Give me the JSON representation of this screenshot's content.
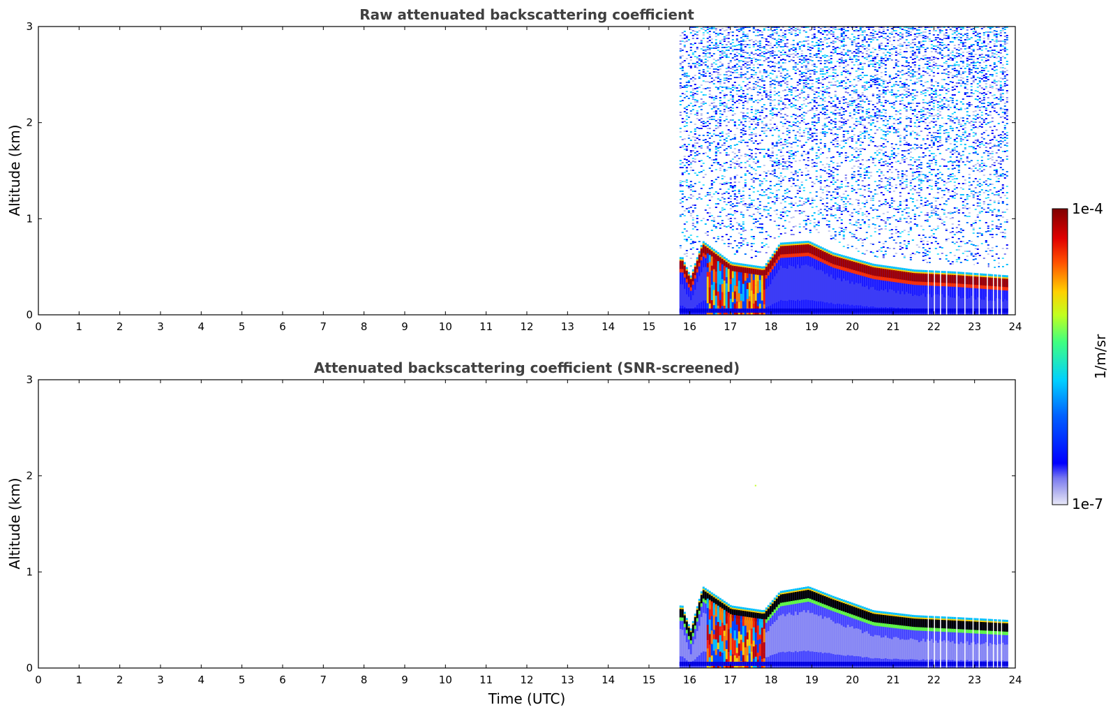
{
  "chart_data": [
    {
      "type": "heatmap",
      "title": "Raw attenuated backscattering coefficient",
      "xlabel": "",
      "ylabel": "Altitude (km)",
      "xlim": [
        0,
        24
      ],
      "ylim": [
        0,
        3
      ],
      "x_ticks": [
        "0",
        "1",
        "2",
        "3",
        "4",
        "5",
        "6",
        "7",
        "8",
        "9",
        "10",
        "11",
        "12",
        "13",
        "14",
        "15",
        "16",
        "17",
        "18",
        "19",
        "20",
        "21",
        "22",
        "23",
        "24"
      ],
      "y_ticks": [
        "0",
        "1",
        "2",
        "3"
      ],
      "data_start_time": 15.75,
      "data_end_time": 23.8,
      "boundary_layer_top_km": [
        {
          "t": 15.8,
          "z": 0.55
        },
        {
          "t": 16.0,
          "z": 0.35
        },
        {
          "t": 16.3,
          "z": 0.72
        },
        {
          "t": 17.0,
          "z": 0.5
        },
        {
          "t": 17.8,
          "z": 0.45
        },
        {
          "t": 18.2,
          "z": 0.7
        },
        {
          "t": 18.9,
          "z": 0.72
        },
        {
          "t": 19.5,
          "z": 0.6
        },
        {
          "t": 20.5,
          "z": 0.48
        },
        {
          "t": 21.5,
          "z": 0.42
        },
        {
          "t": 22.5,
          "z": 0.4
        },
        {
          "t": 23.8,
          "z": 0.36
        }
      ]
    },
    {
      "type": "heatmap",
      "title": "Attenuated backscattering coefficient (SNR-screened)",
      "xlabel": "Time (UTC)",
      "ylabel": "Altitude (km)",
      "xlim": [
        0,
        24
      ],
      "ylim": [
        0,
        3
      ],
      "x_ticks": [
        "0",
        "1",
        "2",
        "3",
        "4",
        "5",
        "6",
        "7",
        "8",
        "9",
        "10",
        "11",
        "12",
        "13",
        "14",
        "15",
        "16",
        "17",
        "18",
        "19",
        "20",
        "21",
        "22",
        "23",
        "24"
      ],
      "y_ticks": [
        "0",
        "1",
        "2",
        "3"
      ],
      "data_start_time": 15.75,
      "data_end_time": 23.8,
      "boundary_layer_top_km": [
        {
          "t": 15.8,
          "z": 0.6
        },
        {
          "t": 16.0,
          "z": 0.35
        },
        {
          "t": 16.3,
          "z": 0.8
        },
        {
          "t": 17.0,
          "z": 0.6
        },
        {
          "t": 17.8,
          "z": 0.55
        },
        {
          "t": 18.2,
          "z": 0.75
        },
        {
          "t": 18.9,
          "z": 0.8
        },
        {
          "t": 19.5,
          "z": 0.7
        },
        {
          "t": 20.5,
          "z": 0.55
        },
        {
          "t": 21.5,
          "z": 0.5
        },
        {
          "t": 22.5,
          "z": 0.48
        },
        {
          "t": 23.8,
          "z": 0.45
        }
      ]
    }
  ],
  "colorbar": {
    "max_label": "1e-4",
    "min_label": "1e-7",
    "unit_label": "1/m/sr",
    "scale": "log",
    "colormap": "jet",
    "min_color": "#e8e8f8",
    "max_color": "#7f0000"
  }
}
